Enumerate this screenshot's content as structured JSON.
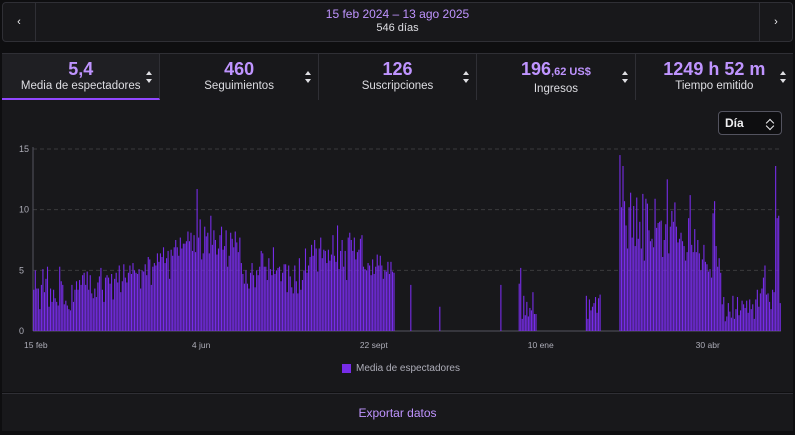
{
  "range": {
    "dates": "15 feb 2024 – 13 ago 2025",
    "days": "546 días",
    "prev_icon": "chevron-left-icon",
    "next_icon": "chevron-right-icon"
  },
  "tabs": [
    {
      "value": "5,4",
      "value_small": "",
      "label": "Media de espectadores",
      "active": true
    },
    {
      "value": "460",
      "value_small": "",
      "label": "Seguimientos",
      "active": false
    },
    {
      "value": "126",
      "value_small": "",
      "label": "Suscripciones",
      "active": false
    },
    {
      "value": "196",
      "value_small": ",62 US$",
      "label": "Ingresos",
      "active": false
    },
    {
      "value": "1249 h 52 m",
      "value_small": "",
      "label": "Tiempo emitido",
      "active": false
    }
  ],
  "granularity": {
    "selected": "Día"
  },
  "chart_data": {
    "type": "bar",
    "ylim": [
      0,
      15
    ],
    "yticks": [
      "0",
      "5",
      "10",
      "15"
    ],
    "xticks": [
      {
        "label": "15 feb",
        "index": 0
      },
      {
        "label": "4 jun",
        "index": 110
      },
      {
        "label": "22 sept",
        "index": 220
      },
      {
        "label": "10 ene",
        "index": 330
      },
      {
        "label": "30 abr",
        "index": 440
      }
    ],
    "series": [
      {
        "name": "Media de espectadores",
        "color": "#772ce8"
      }
    ],
    "values": [
      3.4,
      5.0,
      3.5,
      3.5,
      1.8,
      3.8,
      5.1,
      3.2,
      4.3,
      5.3,
      2.0,
      3.5,
      2.4,
      3.4,
      2.7,
      2.4,
      2.1,
      5.3,
      4.1,
      3.8,
      2.2,
      2.5,
      2.1,
      1.8,
      1.7,
      3.8,
      2.4,
      3.4,
      4.1,
      3.4,
      4.2,
      3.8,
      4.6,
      4.8,
      3.8,
      4.9,
      3.4,
      4.6,
      3.1,
      2.7,
      3.5,
      2.8,
      4.0,
      4.5,
      5.2,
      3.4,
      2.4,
      4.4,
      4.6,
      4.4,
      3.9,
      4.7,
      2.6,
      4.3,
      4.8,
      4.0,
      5.4,
      3.2,
      4.1,
      5.5,
      4.4,
      4.0,
      4.8,
      5.4,
      4.7,
      5.6,
      5.0,
      4.8,
      4.7,
      5.1,
      3.5,
      5.0,
      4.9,
      5.5,
      4.6,
      6.1,
      5.9,
      3.8,
      5.3,
      5.6,
      5.4,
      6.4,
      5.7,
      6.4,
      6.1,
      6.9,
      5.6,
      6.0,
      6.6,
      4.3,
      6.7,
      6.2,
      6.9,
      7.5,
      6.9,
      6.2,
      7.7,
      6.8,
      7.2,
      7.2,
      7.4,
      8.2,
      7.4,
      8.1,
      6.6,
      7.9,
      6.5,
      11.7,
      7.7,
      9.2,
      5.9,
      6.4,
      8.6,
      7.8,
      8.1,
      6.4,
      9.5,
      7.1,
      8.3,
      7.5,
      6.3,
      6.8,
      7.9,
      8.6,
      6.7,
      7.0,
      8.3,
      5.3,
      6.2,
      8.1,
      7.6,
      6.9,
      8.2,
      7.3,
      6.5,
      7.7,
      5.6,
      4.7,
      3.9,
      5.0,
      3.9,
      3.5,
      4.8,
      5.6,
      4.6,
      3.6,
      5.0,
      4.6,
      5.3,
      6.6,
      6.4,
      5.3,
      5.3,
      4.2,
      6.0,
      5.1,
      4.6,
      6.9,
      4.7,
      5.0,
      5.2,
      5.3,
      4.1,
      4.8,
      5.5,
      5.5,
      3.2,
      5.4,
      4.5,
      3.6,
      3.1,
      5.4,
      4.1,
      3.1,
      6.0,
      3.4,
      4.2,
      5.0,
      6.8,
      4.8,
      5.4,
      6.1,
      7.1,
      6.2,
      7.5,
      6.8,
      4.9,
      6.8,
      7.7,
      6.0,
      6.7,
      6.6,
      5.6,
      6.7,
      5.8,
      6.3,
      7.9,
      6.2,
      5.7,
      8.7,
      5.1,
      6.6,
      7.5,
      5.3,
      6.6,
      4.2,
      7.7,
      8.1,
      7.5,
      6.6,
      7.7,
      5.9,
      6.5,
      6.7,
      7.6,
      7.9,
      5.3,
      5.1,
      5.0,
      5.6,
      5.4,
      4.6,
      5.9,
      4.7,
      5.3,
      6.3,
      5.4,
      6.2,
      5.4,
      4.3,
      5.0,
      4.9,
      5.7,
      4.7,
      5.7,
      4.9,
      4.8,
      0,
      0,
      0,
      0,
      0,
      0,
      0,
      0,
      0,
      0,
      3.8,
      0,
      0,
      0,
      0,
      0,
      0,
      0,
      0,
      0,
      0,
      0,
      0,
      0,
      0,
      0,
      0,
      0,
      0,
      2.0,
      0,
      0,
      0,
      0,
      0,
      0,
      0,
      0,
      0,
      0,
      0,
      0,
      0,
      0,
      0,
      0,
      0,
      0,
      0,
      0,
      0,
      0,
      0,
      0,
      0,
      0,
      0,
      0,
      0,
      0,
      0,
      0,
      0,
      0,
      0,
      0,
      0,
      0,
      0,
      3.8,
      0,
      0,
      0,
      0,
      0,
      0,
      0,
      0,
      0,
      0,
      0,
      3.9,
      5.2,
      1.0,
      2.9,
      1.3,
      2.4,
      1.2,
      1.9,
      1.7,
      3.2,
      1.4,
      1.4,
      0,
      0,
      0,
      0,
      0,
      0,
      0,
      0,
      0,
      0,
      0,
      0,
      0,
      0,
      0,
      0,
      0,
      0,
      0,
      0,
      0,
      0,
      0,
      0,
      0,
      0,
      0,
      0,
      0,
      0,
      0,
      0,
      2.9,
      1.0,
      2.6,
      1.7,
      2.0,
      2.3,
      2.8,
      1.5,
      2.7,
      3.0,
      0,
      0,
      0,
      0,
      0,
      0,
      0,
      0,
      0,
      0,
      0,
      0,
      14.5,
      10.2,
      13.6,
      10.7,
      8.7,
      6.8,
      10.2,
      11.4,
      7.7,
      10.3,
      7.0,
      11.0,
      7.6,
      9.0,
      6.8,
      11.3,
      5.8,
      10.9,
      10.5,
      8.3,
      7.4,
      7.6,
      6.9,
      10.9,
      8.5,
      8.9,
      9.0,
      9.1,
      6.1,
      7.5,
      8.8,
      12.5,
      6.4,
      8.6,
      9.9,
      9.0,
      10.6,
      8.6,
      7.3,
      7.6,
      8.1,
      7.4,
      7.0,
      5.8,
      6.5,
      9.3,
      11.2,
      7.1,
      6.5,
      8.4,
      6.5,
      7.5,
      6.4,
      5.0,
      5.9,
      7.1,
      5.7,
      5.5,
      4.9,
      5.1,
      4.4,
      9.7,
      10.7,
      7.0,
      5.3,
      6.0,
      4.8,
      2.2,
      2.8,
      0.8,
      1.2,
      2.3,
      1.6,
      1.1,
      2.9,
      1.0,
      1.8,
      2.8,
      1.3,
      1.7,
      2.5,
      2.2,
      1.9,
      2.5,
      1.5,
      2.6,
      1.8,
      2.2,
      1.0,
      2.6,
      3.4,
      2.0,
      3.1,
      3.5,
      4.4,
      5.4,
      3.0,
      3.1,
      2.4,
      1.8,
      3.4,
      3.2,
      13.6,
      9.3,
      9.5,
      2.3
    ],
    "legend_placement": "bottom-center",
    "grid": true
  },
  "legend_label": "Media de espectadores",
  "footer": {
    "export_label": "Exportar datos"
  }
}
